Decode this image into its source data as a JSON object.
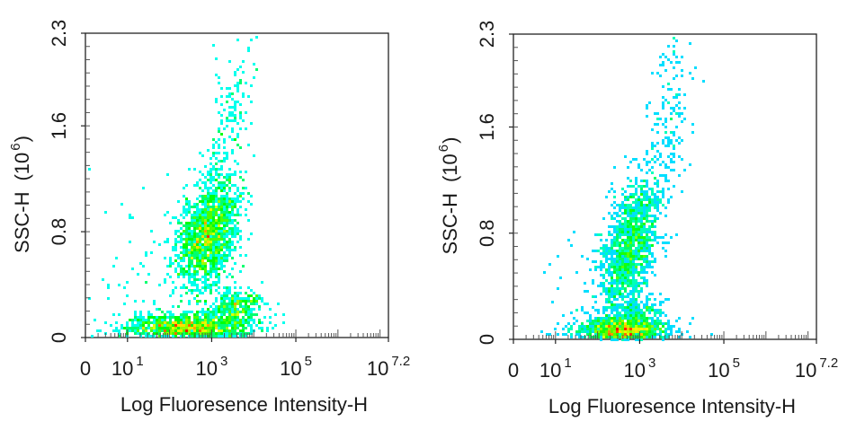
{
  "chart_data": [
    {
      "type": "scatter",
      "subtype": "flow-cytometry-density-dot-plot",
      "title": "",
      "xlabel": "Log Fluoresence Intensity-H",
      "ylabel_main": "SSC-H",
      "ylabel_unit_base": "(10",
      "ylabel_unit_exp": "6",
      "ylabel_unit_close": ")",
      "x_scale": "log10",
      "xlim": [
        0,
        7.2
      ],
      "ylim": [
        0,
        2.3
      ],
      "x_ticks": [
        {
          "value": 0,
          "base": "0",
          "exp": ""
        },
        {
          "value": 1,
          "base": "10",
          "exp": "1"
        },
        {
          "value": 3,
          "base": "10",
          "exp": "3"
        },
        {
          "value": 5,
          "base": "10",
          "exp": "5"
        },
        {
          "value": 7.2,
          "base": "10",
          "exp": "7.2"
        }
      ],
      "y_ticks": [
        {
          "value": 0,
          "label": "0"
        },
        {
          "value": 0.8,
          "label": "0.8"
        },
        {
          "value": 1.6,
          "label": "1.6"
        },
        {
          "value": 2.3,
          "label": "2.3"
        }
      ],
      "grid": false,
      "legend": "none",
      "colormap": [
        "#0000ff",
        "#00ffff",
        "#00ff00",
        "#ffff00",
        "#ff0000"
      ],
      "populations": [
        {
          "x_log": 2.9,
          "y": 0.78,
          "sx": 0.38,
          "sy": 0.22,
          "corr": 0.35,
          "n": 1500
        },
        {
          "x_log": 2.4,
          "y": 0.08,
          "sx": 0.75,
          "sy": 0.05,
          "corr": 0.0,
          "n": 1100
        },
        {
          "x_log": 3.6,
          "y": 0.22,
          "sx": 0.35,
          "sy": 0.07,
          "corr": 0.0,
          "n": 350
        },
        {
          "x_log": 3.4,
          "y": 1.55,
          "sx": 0.28,
          "sy": 0.35,
          "corr": 0.5,
          "n": 180
        },
        {
          "x_log": 1.6,
          "y": 0.45,
          "sx": 0.9,
          "sy": 0.3,
          "corr": 0.2,
          "n": 80
        }
      ]
    },
    {
      "type": "scatter",
      "subtype": "flow-cytometry-density-dot-plot",
      "title": "",
      "xlabel": "Log Fluoresence Intensity-H",
      "ylabel_main": "SSC-H",
      "ylabel_unit_base": "(10",
      "ylabel_unit_exp": "6",
      "ylabel_unit_close": ")",
      "x_scale": "log10",
      "xlim": [
        0,
        7.2
      ],
      "ylim": [
        0,
        2.3
      ],
      "x_ticks": [
        {
          "value": 0,
          "base": "0",
          "exp": ""
        },
        {
          "value": 1,
          "base": "10",
          "exp": "1"
        },
        {
          "value": 3,
          "base": "10",
          "exp": "3"
        },
        {
          "value": 5,
          "base": "10",
          "exp": "5"
        },
        {
          "value": 7.2,
          "base": "10",
          "exp": "7.2"
        }
      ],
      "y_ticks": [
        {
          "value": 0,
          "label": "0"
        },
        {
          "value": 0.8,
          "label": "0.8"
        },
        {
          "value": 1.6,
          "label": "1.6"
        },
        {
          "value": 2.3,
          "label": "2.3"
        }
      ],
      "grid": false,
      "legend": "none",
      "colormap": [
        "#0000ff",
        "#00ffff",
        "#00ff00",
        "#ffff00",
        "#ff0000"
      ],
      "populations": [
        {
          "x_log": 2.8,
          "y": 0.72,
          "sx": 0.35,
          "sy": 0.25,
          "corr": 0.45,
          "n": 1300
        },
        {
          "x_log": 2.6,
          "y": 0.07,
          "sx": 0.55,
          "sy": 0.05,
          "corr": 0.0,
          "n": 1200
        },
        {
          "x_log": 2.9,
          "y": 0.2,
          "sx": 0.35,
          "sy": 0.08,
          "corr": 0.0,
          "n": 250
        },
        {
          "x_log": 3.7,
          "y": 1.6,
          "sx": 0.3,
          "sy": 0.4,
          "corr": 0.5,
          "n": 170
        },
        {
          "x_log": 1.9,
          "y": 0.4,
          "sx": 0.8,
          "sy": 0.3,
          "corr": 0.3,
          "n": 70
        }
      ]
    }
  ]
}
